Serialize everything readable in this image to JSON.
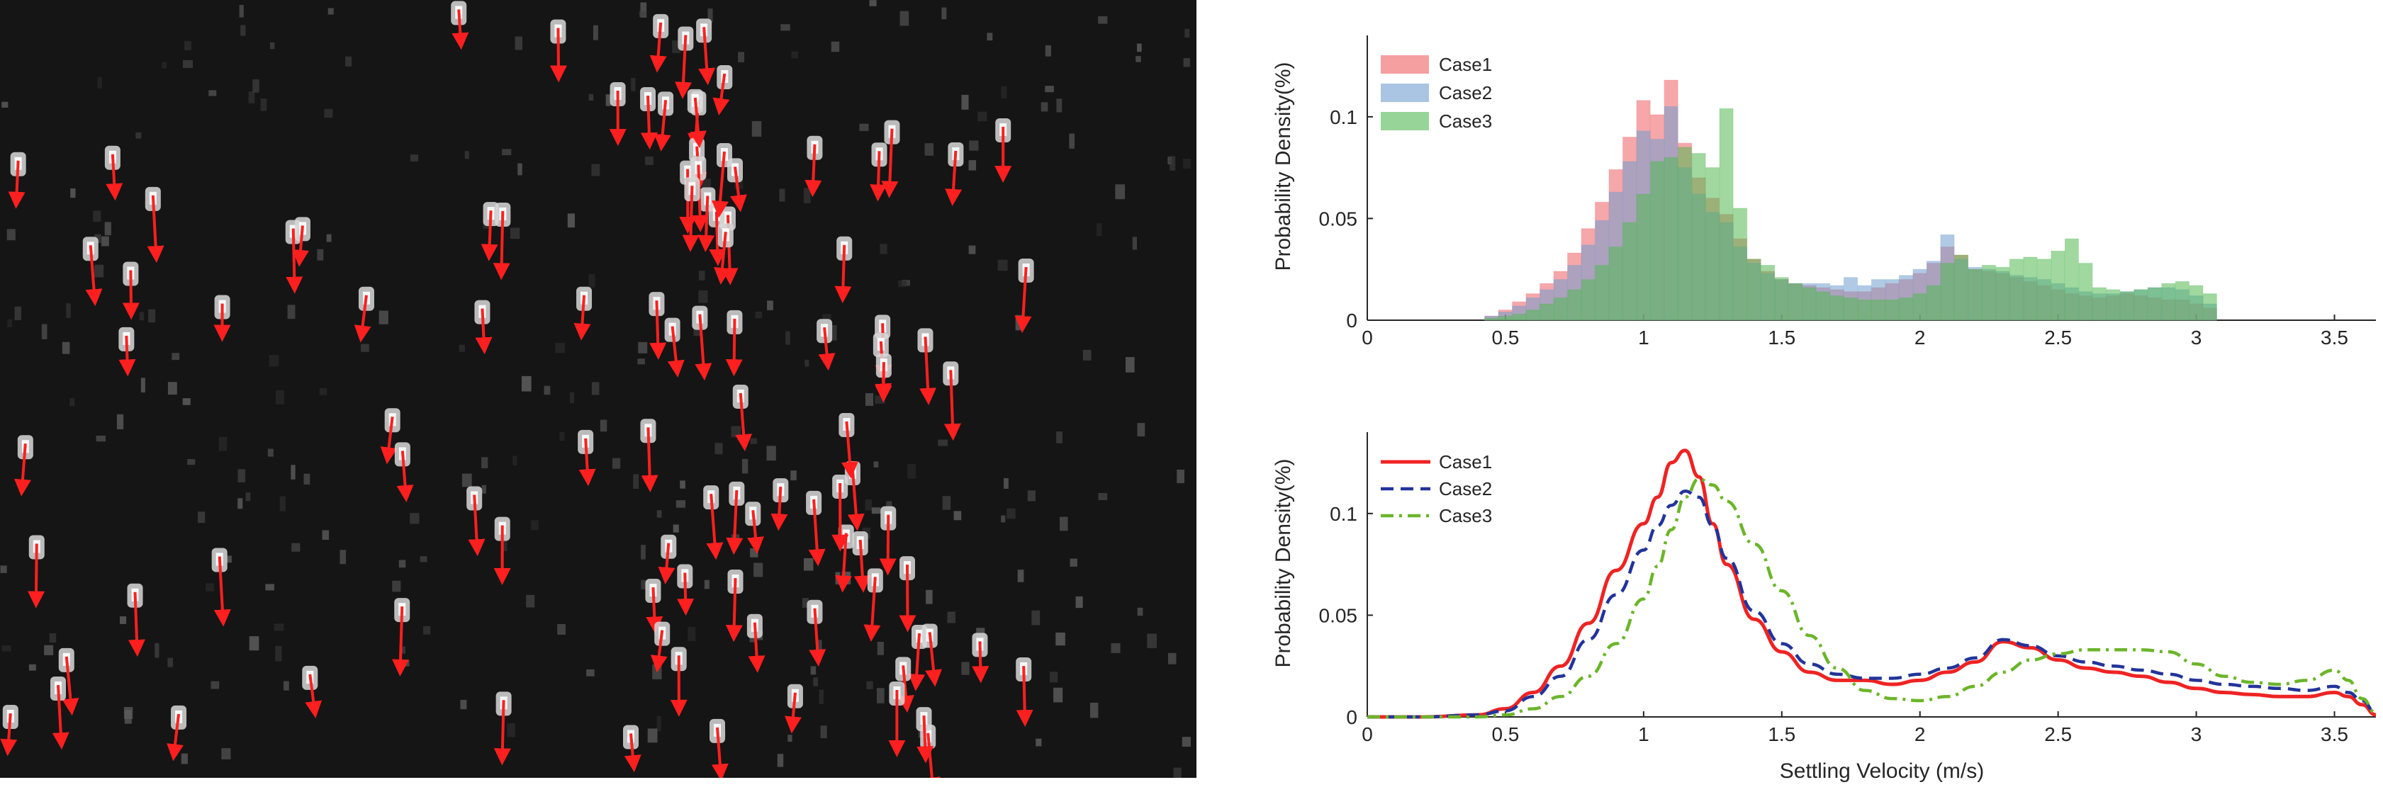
{
  "colors": {
    "background_image": "#151515",
    "arrow": "#ff1f1f",
    "hist_case1": "#ee5f63",
    "hist_case2": "#6f9fd0",
    "hist_case3": "#52b852",
    "line_case1": "#ef2323",
    "line_case2": "#22349a",
    "line_case3": "#6bb52a"
  },
  "chart_data": [
    {
      "type": "bar",
      "ylabel": "Probability Density(%)",
      "xlim": [
        0,
        3.65
      ],
      "ylim": [
        0,
        0.14
      ],
      "xticks": [
        0,
        0.5,
        1,
        1.5,
        2,
        2.5,
        3,
        3.5
      ],
      "xtick_labels": [
        "0",
        "0.5",
        "1",
        "1.5",
        "2",
        "2.5",
        "3",
        "3.5"
      ],
      "yticks": [
        0,
        0.05,
        0.1
      ],
      "ytick_labels": [
        "0",
        "0.05",
        "0.1"
      ],
      "legend_position": "top-left",
      "bin_width": 0.05,
      "bin_start": 0.425,
      "series": [
        {
          "name": "Case1",
          "values": [
            0.002,
            0.005,
            0.009,
            0.013,
            0.018,
            0.024,
            0.033,
            0.045,
            0.058,
            0.074,
            0.09,
            0.108,
            0.101,
            0.118,
            0.087,
            0.07,
            0.06,
            0.052,
            0.04,
            0.03,
            0.024,
            0.02,
            0.018,
            0.017,
            0.016,
            0.015,
            0.014,
            0.014,
            0.016,
            0.018,
            0.02,
            0.023,
            0.028,
            0.036,
            0.032,
            0.025,
            0.024,
            0.023,
            0.021,
            0.019,
            0.017,
            0.015,
            0.013,
            0.012,
            0.011,
            0.012,
            0.013,
            0.012,
            0.011,
            0.01,
            0.01,
            0.008,
            0.006
          ]
        },
        {
          "name": "Case2",
          "values": [
            0.002,
            0.004,
            0.007,
            0.011,
            0.015,
            0.02,
            0.027,
            0.037,
            0.049,
            0.063,
            0.078,
            0.093,
            0.089,
            0.105,
            0.075,
            0.062,
            0.053,
            0.048,
            0.036,
            0.028,
            0.023,
            0.02,
            0.018,
            0.018,
            0.018,
            0.017,
            0.021,
            0.017,
            0.02,
            0.02,
            0.022,
            0.025,
            0.029,
            0.042,
            0.03,
            0.026,
            0.025,
            0.024,
            0.022,
            0.021,
            0.02,
            0.018,
            0.016,
            0.014,
            0.013,
            0.013,
            0.014,
            0.015,
            0.016,
            0.016,
            0.015,
            0.012,
            0.008
          ]
        },
        {
          "name": "Case3",
          "values": [
            0.001,
            0.002,
            0.003,
            0.005,
            0.008,
            0.011,
            0.015,
            0.02,
            0.027,
            0.036,
            0.048,
            0.062,
            0.078,
            0.08,
            0.085,
            0.082,
            0.075,
            0.104,
            0.055,
            0.03,
            0.027,
            0.021,
            0.018,
            0.016,
            0.014,
            0.012,
            0.011,
            0.01,
            0.01,
            0.01,
            0.011,
            0.013,
            0.017,
            0.028,
            0.032,
            0.025,
            0.027,
            0.026,
            0.03,
            0.031,
            0.03,
            0.034,
            0.04,
            0.028,
            0.016,
            0.015,
            0.014,
            0.015,
            0.016,
            0.018,
            0.019,
            0.017,
            0.013
          ]
        }
      ]
    },
    {
      "type": "line",
      "xlabel": "Settling Velocity (m/s)",
      "ylabel": "Probability Density(%)",
      "xlim": [
        0,
        3.65
      ],
      "ylim": [
        0,
        0.14
      ],
      "xticks": [
        0,
        0.5,
        1,
        1.5,
        2,
        2.5,
        3,
        3.5
      ],
      "xtick_labels": [
        "0",
        "0.5",
        "1",
        "1.5",
        "2",
        "2.5",
        "3",
        "3.5"
      ],
      "yticks": [
        0,
        0.05,
        0.1
      ],
      "ytick_labels": [
        "0",
        "0.05",
        "0.1"
      ],
      "legend_position": "top-left",
      "x": [
        0,
        0.2,
        0.4,
        0.5,
        0.6,
        0.7,
        0.8,
        0.9,
        1.0,
        1.05,
        1.1,
        1.15,
        1.2,
        1.25,
        1.3,
        1.4,
        1.5,
        1.6,
        1.7,
        1.8,
        1.9,
        2.0,
        2.1,
        2.2,
        2.3,
        2.4,
        2.5,
        2.6,
        2.7,
        2.8,
        2.9,
        3.0,
        3.1,
        3.2,
        3.3,
        3.4,
        3.5,
        3.55,
        3.6,
        3.65
      ],
      "series": [
        {
          "name": "Case1",
          "style": "solid",
          "values": [
            0,
            0,
            0.001,
            0.004,
            0.012,
            0.025,
            0.046,
            0.072,
            0.095,
            0.108,
            0.125,
            0.131,
            0.118,
            0.095,
            0.075,
            0.048,
            0.032,
            0.022,
            0.018,
            0.018,
            0.016,
            0.018,
            0.022,
            0.027,
            0.037,
            0.034,
            0.028,
            0.024,
            0.022,
            0.02,
            0.017,
            0.014,
            0.012,
            0.011,
            0.01,
            0.01,
            0.012,
            0.01,
            0.006,
            0.001
          ]
        },
        {
          "name": "Case2",
          "style": "dashed",
          "values": [
            0,
            0,
            0.001,
            0.003,
            0.01,
            0.02,
            0.038,
            0.06,
            0.082,
            0.094,
            0.104,
            0.111,
            0.108,
            0.094,
            0.078,
            0.052,
            0.036,
            0.026,
            0.021,
            0.019,
            0.019,
            0.021,
            0.024,
            0.029,
            0.038,
            0.035,
            0.03,
            0.027,
            0.025,
            0.023,
            0.021,
            0.018,
            0.016,
            0.015,
            0.014,
            0.013,
            0.015,
            0.012,
            0.008,
            0.002
          ]
        },
        {
          "name": "Case3",
          "style": "dashdot",
          "values": [
            0,
            0,
            0,
            0.001,
            0.004,
            0.01,
            0.02,
            0.036,
            0.058,
            0.074,
            0.092,
            0.108,
            0.117,
            0.114,
            0.106,
            0.085,
            0.062,
            0.04,
            0.024,
            0.013,
            0.009,
            0.008,
            0.01,
            0.015,
            0.022,
            0.028,
            0.031,
            0.033,
            0.033,
            0.033,
            0.032,
            0.026,
            0.02,
            0.017,
            0.016,
            0.018,
            0.023,
            0.018,
            0.009,
            0.002
          ]
        }
      ]
    }
  ]
}
